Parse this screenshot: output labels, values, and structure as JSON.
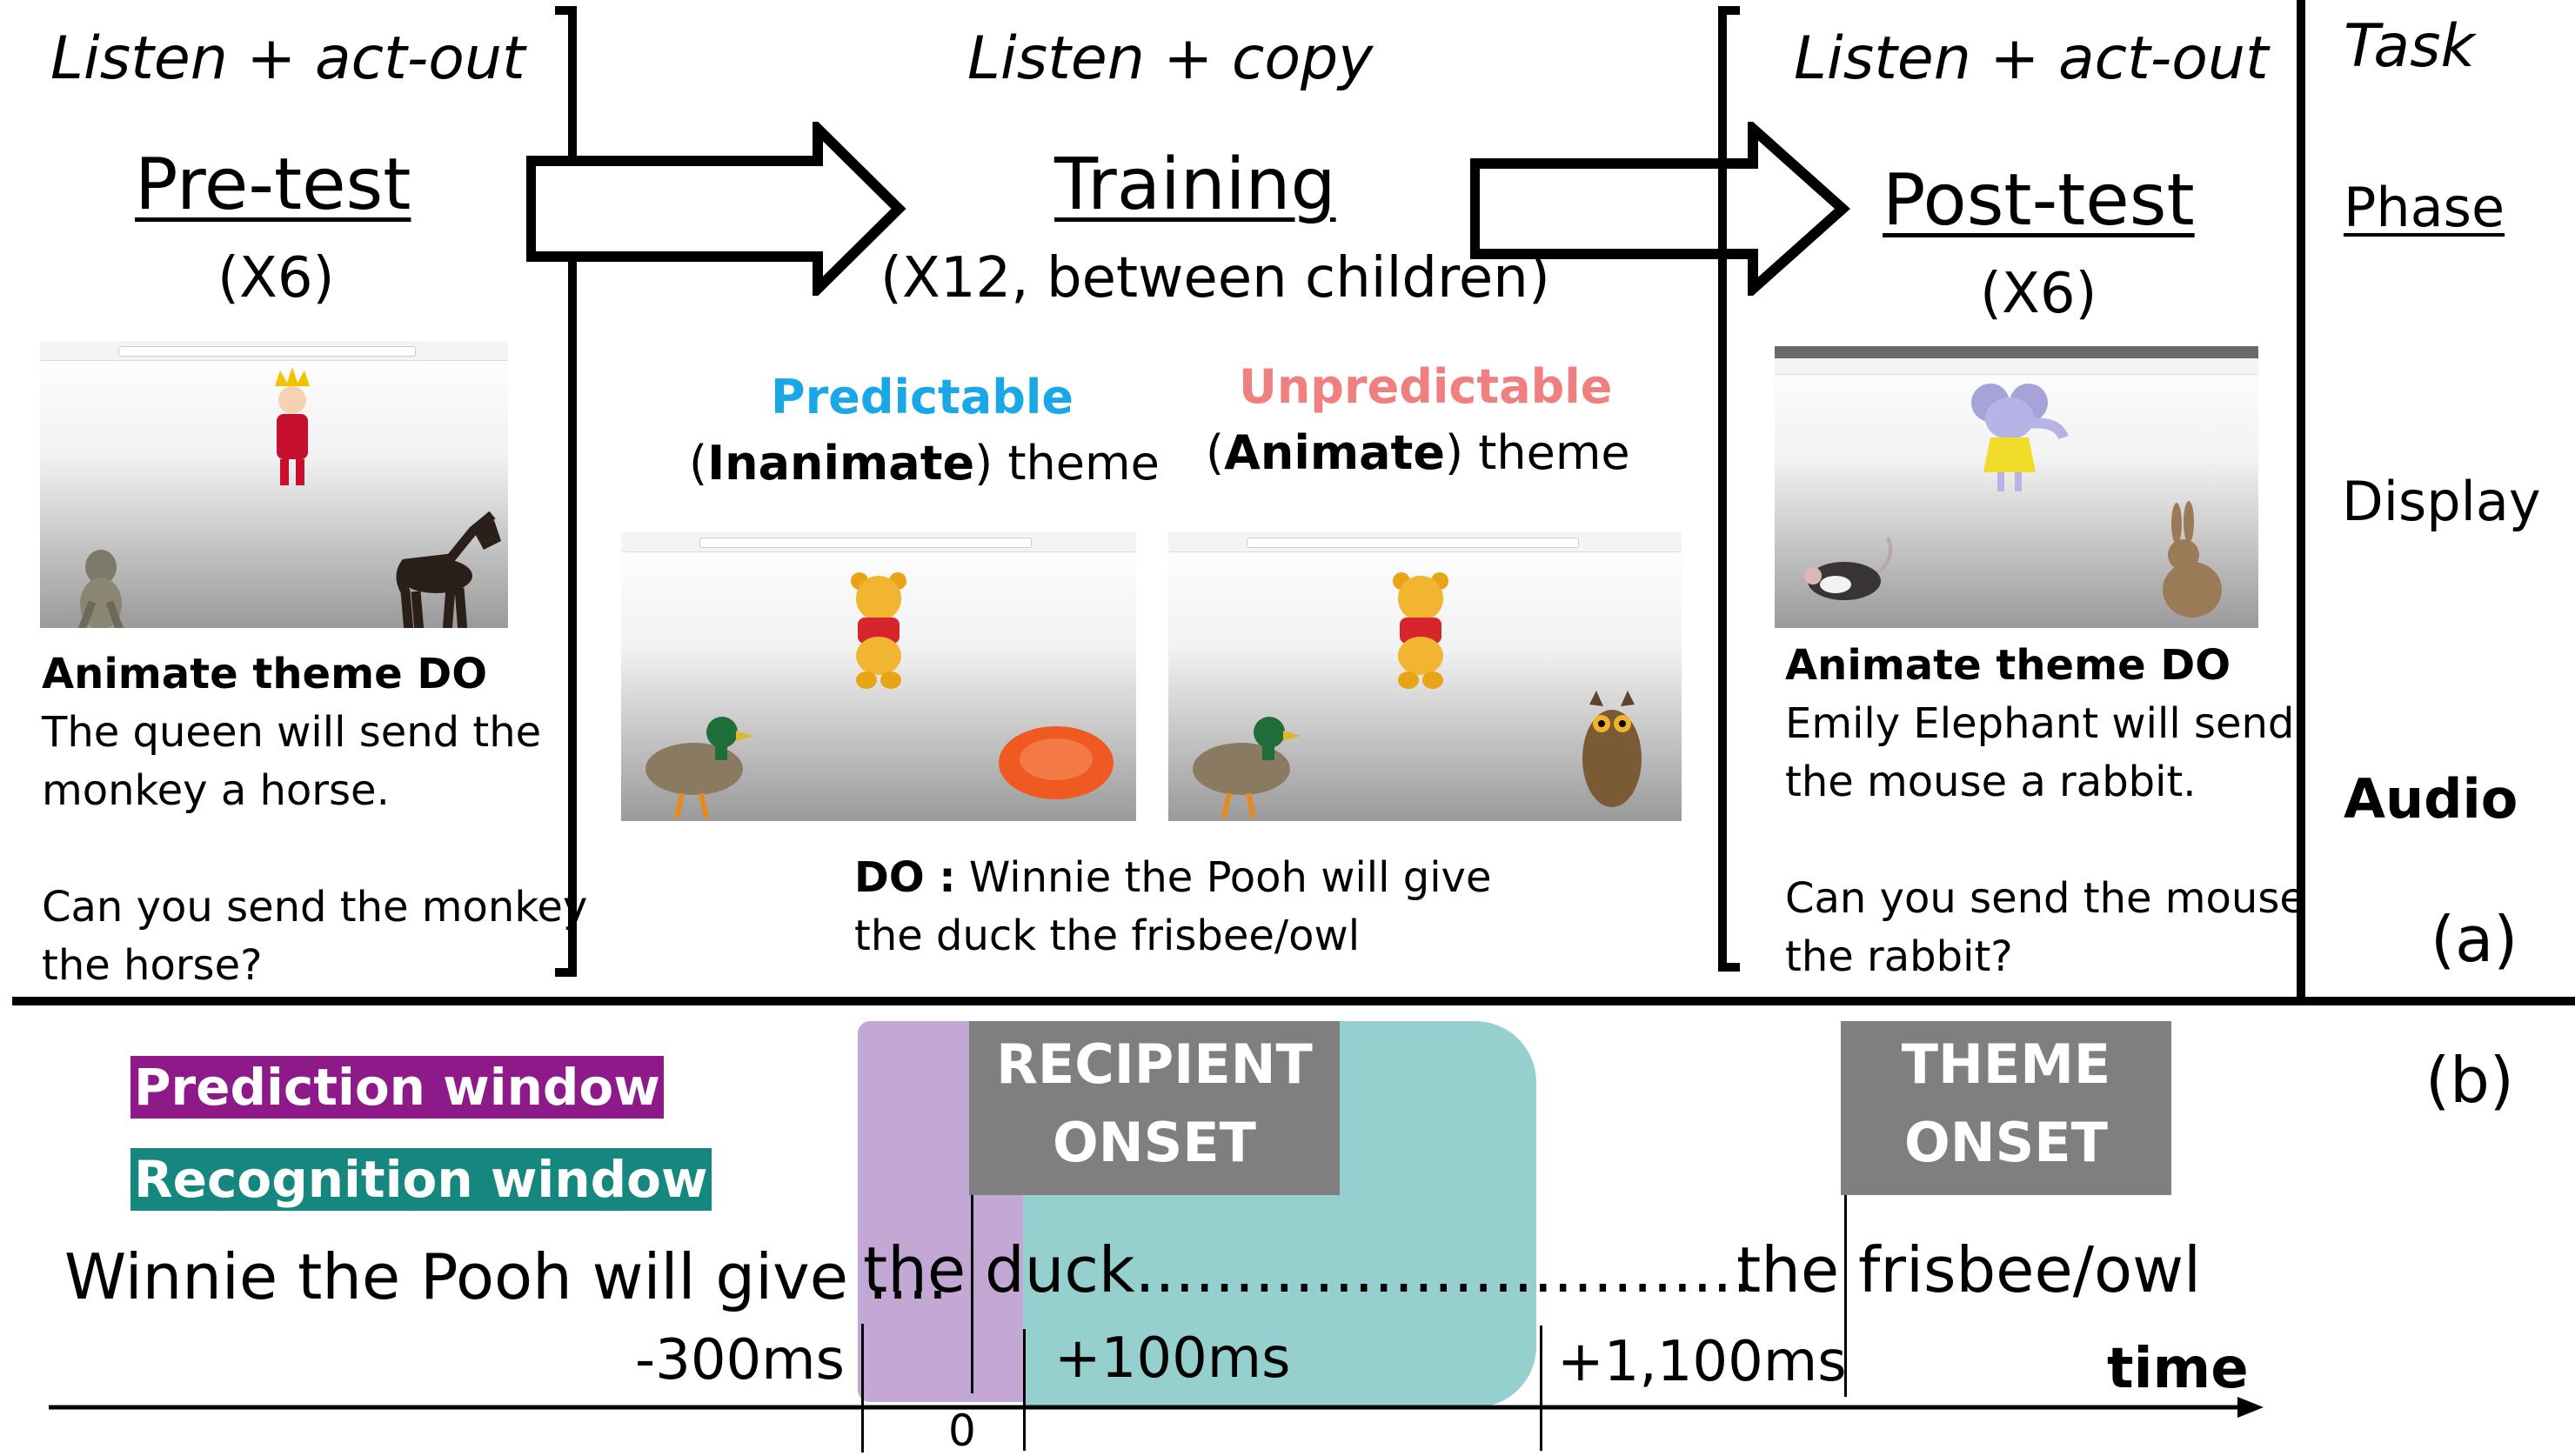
{
  "panel_a": {
    "pretest": {
      "task": "Listen + act-out",
      "phase": "Pre-test",
      "reps": "(X6)",
      "audio_head": "Animate theme DO",
      "audio_line1": "The queen will send the",
      "audio_line2": "monkey a horse.",
      "question_line1": "Can you send the monkey",
      "question_line2": "the horse?"
    },
    "training": {
      "task": "Listen + copy",
      "phase": "Training",
      "reps": "(X12, between children)",
      "pred_title": "Predictable",
      "pred_open": "(",
      "pred_bold": "Inanimate",
      "pred_rest": ") theme",
      "unpred_title": "Unpredictable",
      "unpred_open": "(",
      "unpred_bold": "Animate",
      "unpred_rest": ") theme",
      "do_label": "DO :",
      "do_line1": " Winnie the Pooh will give",
      "do_line2": "the duck the frisbee/owl"
    },
    "posttest": {
      "task": "Listen + act-out",
      "phase": "Post-test",
      "reps": "(X6)",
      "audio_head": "Animate theme DO",
      "audio_line1": "Emily Elephant will send",
      "audio_line2": "the mouse a rabbit.",
      "question_line1": "Can you send the mouse",
      "question_line2": "the rabbit?"
    },
    "row_labels": {
      "task": "Task",
      "phase": "Phase",
      "display": "Display",
      "audio": "Audio"
    },
    "panel_label": "(a)"
  },
  "panel_b": {
    "panel_label": "(b)",
    "legend_prediction": "Prediction window",
    "legend_recognition": "Recognition window",
    "recipient_onset_1": "RECIPIENT",
    "recipient_onset_2": "ONSET",
    "theme_onset_1": "THEME",
    "theme_onset_2": "ONSET",
    "sentence_pre": "Winnie the Pooh will give ....",
    "sentence_the": "the",
    "sentence_duck": "duck...............................",
    "sentence_the2": "the",
    "sentence_theme": "frisbee/owl",
    "t_minus300": "-300ms",
    "t_zero": "0",
    "t_plus100": "+100ms",
    "t_plus1100": "+1,100ms",
    "time_label": "time"
  },
  "colors": {
    "prediction": "#8e1a8a",
    "prediction_light": "#c3a8d6",
    "recognition": "#15877f",
    "recognition_light": "#95d0cf",
    "predictable_title": "#1aa7e8",
    "unpredictable_title": "#f08080",
    "onset_box": "#7f7f7f"
  },
  "icons": [
    "queen-icon",
    "monkey-icon",
    "horse-icon",
    "pooh-icon",
    "duck-icon",
    "frisbee-icon",
    "owl-icon",
    "elephant-icon",
    "mouse-icon",
    "rabbit-icon"
  ]
}
